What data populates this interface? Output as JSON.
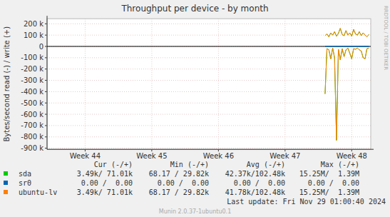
{
  "chart_data": {
    "type": "line",
    "title": "Throughput per device - by month",
    "y_label": "Bytes/second read (-) / write (+)",
    "watermark": "RRDTOOL / TOBI OETIKER",
    "last_update": "Last update: Fri Nov 29 01:00:40 2024",
    "footer": "Munin 2.0.37-1ubuntu0.1",
    "grid": true,
    "xlim": [
      300,
      334
    ],
    "xticks": [
      {
        "value": 304,
        "label": "Week 44"
      },
      {
        "value": 311,
        "label": "Week 45"
      },
      {
        "value": 318,
        "label": "Week 46"
      },
      {
        "value": 325,
        "label": "Week 47"
      },
      {
        "value": 332,
        "label": "Week 48"
      }
    ],
    "ylim": [
      -910000,
      245000
    ],
    "yticks": [
      {
        "value": 200000,
        "label": "200 k"
      },
      {
        "value": 100000,
        "label": "100 k"
      },
      0,
      {
        "value": -100000,
        "label": "-100 k"
      },
      {
        "value": -200000,
        "label": "-200 k"
      },
      {
        "value": -300000,
        "label": "-300 k"
      },
      {
        "value": -400000,
        "label": "-400 k"
      },
      {
        "value": -500000,
        "label": "-500 k"
      },
      {
        "value": -600000,
        "label": "-600 k"
      },
      {
        "value": -700000,
        "label": "-700 k"
      },
      {
        "value": -800000,
        "label": "-800 k"
      },
      {
        "value": -900000,
        "label": "-900 k"
      }
    ],
    "legend_headers": [
      "Cur (-/+)",
      "Min (-/+)",
      "Avg (-/+)",
      "Max (-/+)"
    ],
    "x": [
      329.2,
      329.4,
      329.6,
      329.8,
      330.0,
      330.2,
      330.4,
      330.6,
      330.8,
      331.0,
      331.2,
      331.4,
      331.6,
      331.8,
      332.0,
      332.2,
      332.4,
      332.6,
      332.8,
      333.0,
      333.2,
      333.4,
      333.6,
      333.8
    ],
    "series": [
      {
        "name": "sda",
        "color": "#00cc00",
        "cur": "3.49k/ 71.01k",
        "min": "68.17 / 29.82k",
        "avg": "42.37k/102.48k",
        "max": "15.25M/  1.39M",
        "write": [
          95000,
          110000,
          85000,
          120000,
          100000,
          130000,
          90000,
          115000,
          160000,
          105000,
          95000,
          140000,
          100000,
          120000,
          90000,
          150000,
          110000,
          100000,
          130000,
          95000,
          120000,
          100000,
          85000,
          105000
        ],
        "read": [
          -420000,
          -20000,
          -30000,
          -110000,
          -15000,
          -100000,
          -830000,
          -25000,
          -120000,
          -20000,
          -90000,
          -30000,
          -15000,
          -60000,
          -110000,
          -20000,
          -25000,
          -15000,
          -30000,
          -40000,
          -100000,
          -110000,
          -20000,
          -15000
        ]
      },
      {
        "name": "sr0",
        "color": "#0066b3",
        "cur": "0.00 /  0.00",
        "min": "0.00 /  0.00",
        "avg": "0.00 /  0.00",
        "max": "0.00 /  0.00",
        "write": [
          0,
          0,
          0,
          0,
          0,
          0,
          0,
          0,
          0,
          0,
          0,
          0,
          0,
          0,
          0,
          0,
          0,
          0,
          0,
          0,
          0,
          0,
          0,
          0
        ],
        "read": [
          0,
          0,
          0,
          0,
          0,
          0,
          0,
          0,
          0,
          0,
          0,
          0,
          0,
          0,
          0,
          0,
          0,
          0,
          0,
          0,
          0,
          0,
          0,
          0
        ]
      },
      {
        "name": "ubuntu-lv",
        "color": "#ff8000",
        "cur": "3.49k/ 71.01k",
        "min": "68.17 / 29.82k",
        "avg": "41.78k/102.48k",
        "max": "15.25M/  1.39M",
        "write": [
          95000,
          110000,
          85000,
          120000,
          100000,
          130000,
          90000,
          115000,
          160000,
          105000,
          95000,
          140000,
          100000,
          120000,
          90000,
          150000,
          110000,
          100000,
          130000,
          95000,
          120000,
          100000,
          85000,
          105000
        ],
        "read": [
          -420000,
          -20000,
          -30000,
          -110000,
          -15000,
          -100000,
          -830000,
          -25000,
          -120000,
          -20000,
          -90000,
          -30000,
          -15000,
          -60000,
          -110000,
          -20000,
          -25000,
          -15000,
          -30000,
          -40000,
          -100000,
          -110000,
          -20000,
          -15000
        ]
      }
    ]
  }
}
